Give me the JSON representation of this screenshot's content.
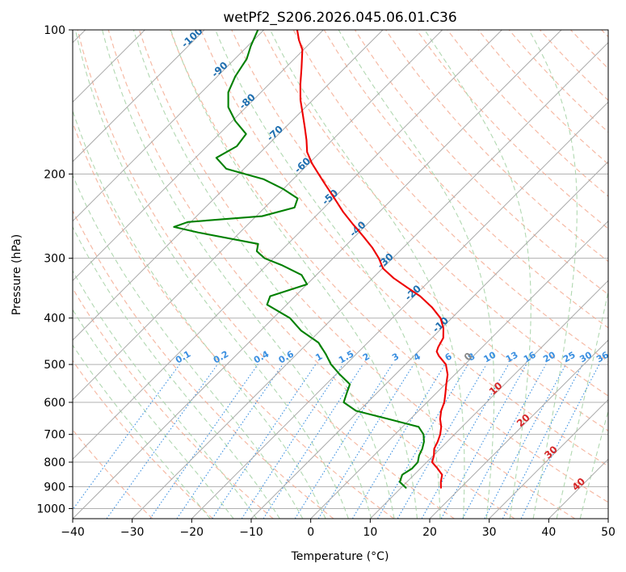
{
  "chart_data": {
    "type": "line",
    "title": "wetPf2_S206.2026.045.06.01.C36",
    "xlabel": "Temperature (°C)",
    "ylabel": "Pressure (hPa)",
    "xlim": [
      -40,
      50
    ],
    "ylim": [
      1050,
      100
    ],
    "yscale": "log",
    "skew": 1.0,
    "grid": true,
    "x_ticks": [
      -40,
      -30,
      -20,
      -10,
      0,
      10,
      20,
      30,
      40,
      50
    ],
    "y_ticks": [
      100,
      200,
      300,
      400,
      500,
      600,
      700,
      800,
      900,
      1000
    ],
    "colors": {
      "temperature": "#ee0000",
      "dewpoint": "#008000",
      "isotherm": "#aaaaaa",
      "dry_adiabat": "#f4a98f",
      "moist_adiabat": "#a8d4a8",
      "mixing_ratio": "#3a8fe0",
      "isotherm_label": "#1f6fb0",
      "zero_isotherm": "#888888",
      "warm_isotherm_label": "#d62728",
      "hot_adiabat": "#d8bc98"
    },
    "isotherm_label_values": [
      -100,
      -90,
      -80,
      -70,
      -60,
      -50,
      -40,
      -30,
      -20,
      -10,
      0,
      10,
      20,
      30,
      40
    ],
    "mixing_ratio_labels": [
      "0.1",
      "0.2",
      "0.4",
      "0.6",
      "1",
      "1.5",
      "2",
      "3",
      "4",
      "6",
      "8",
      "10",
      "13",
      "16",
      "20",
      "25",
      "30",
      "36"
    ],
    "mixing_ratio_values": [
      0.1,
      0.2,
      0.4,
      0.6,
      1,
      1.5,
      2,
      3,
      4,
      6,
      8,
      10,
      13,
      16,
      20,
      25,
      30,
      36
    ],
    "series": [
      {
        "name": "Temperature",
        "color": "#ee0000",
        "points": [
          [
            905,
            16.7
          ],
          [
            880,
            15.7
          ],
          [
            850,
            14.7
          ],
          [
            825,
            12.9
          ],
          [
            800,
            10.9
          ],
          [
            775,
            10.1
          ],
          [
            750,
            9.0
          ],
          [
            725,
            8.4
          ],
          [
            700,
            7.6
          ],
          [
            675,
            6.5
          ],
          [
            650,
            5.0
          ],
          [
            625,
            3.8
          ],
          [
            600,
            2.9
          ],
          [
            575,
            1.6
          ],
          [
            550,
            0.2
          ],
          [
            525,
            -1.2
          ],
          [
            500,
            -3.2
          ],
          [
            480,
            -5.8
          ],
          [
            470,
            -6.9
          ],
          [
            460,
            -7.4
          ],
          [
            440,
            -8.1
          ],
          [
            420,
            -9.7
          ],
          [
            400,
            -11.9
          ],
          [
            380,
            -15.1
          ],
          [
            360,
            -19.0
          ],
          [
            345,
            -22.7
          ],
          [
            330,
            -26.5
          ],
          [
            315,
            -29.9
          ],
          [
            300,
            -32.3
          ],
          [
            285,
            -35.2
          ],
          [
            270,
            -38.6
          ],
          [
            255,
            -42.3
          ],
          [
            240,
            -46.1
          ],
          [
            225,
            -49.8
          ],
          [
            210,
            -53.8
          ],
          [
            200,
            -56.6
          ],
          [
            190,
            -59.5
          ],
          [
            180,
            -62.2
          ],
          [
            170,
            -64.3
          ],
          [
            160,
            -66.7
          ],
          [
            150,
            -69.3
          ],
          [
            140,
            -72.1
          ],
          [
            130,
            -74.7
          ],
          [
            120,
            -77.3
          ],
          [
            110,
            -80.2
          ],
          [
            105,
            -82.4
          ],
          [
            100,
            -84.4
          ]
        ]
      },
      {
        "name": "Dewpoint",
        "color": "#008000",
        "points": [
          [
            905,
            10.8
          ],
          [
            880,
            8.8
          ],
          [
            850,
            8.0
          ],
          [
            825,
            8.6
          ],
          [
            800,
            8.5
          ],
          [
            775,
            7.6
          ],
          [
            750,
            7.0
          ],
          [
            725,
            6.1
          ],
          [
            700,
            4.8
          ],
          [
            675,
            2.7
          ],
          [
            650,
            -3.7
          ],
          [
            625,
            -10.5
          ],
          [
            600,
            -14.0
          ],
          [
            575,
            -15.0
          ],
          [
            550,
            -16.0
          ],
          [
            525,
            -19.3
          ],
          [
            500,
            -22.5
          ],
          [
            475,
            -25.2
          ],
          [
            450,
            -28.3
          ],
          [
            425,
            -33.2
          ],
          [
            400,
            -37.2
          ],
          [
            375,
            -43.3
          ],
          [
            360,
            -44.2
          ],
          [
            340,
            -40.0
          ],
          [
            325,
            -42.5
          ],
          [
            310,
            -47.5
          ],
          [
            300,
            -51.5
          ],
          [
            290,
            -54.0
          ],
          [
            280,
            -55.0
          ],
          [
            265,
            -67.0
          ],
          [
            258,
            -72.0
          ],
          [
            252,
            -70.5
          ],
          [
            245,
            -59.0
          ],
          [
            235,
            -55.0
          ],
          [
            225,
            -56.0
          ],
          [
            215,
            -60.0
          ],
          [
            205,
            -65.0
          ],
          [
            195,
            -73.0
          ],
          [
            185,
            -76.5
          ],
          [
            175,
            -75.0
          ],
          [
            165,
            -75.5
          ],
          [
            155,
            -79.5
          ],
          [
            145,
            -83.0
          ],
          [
            135,
            -85.5
          ],
          [
            125,
            -87.0
          ],
          [
            115,
            -88.0
          ],
          [
            108,
            -89.5
          ],
          [
            100,
            -91.0
          ]
        ]
      }
    ]
  }
}
